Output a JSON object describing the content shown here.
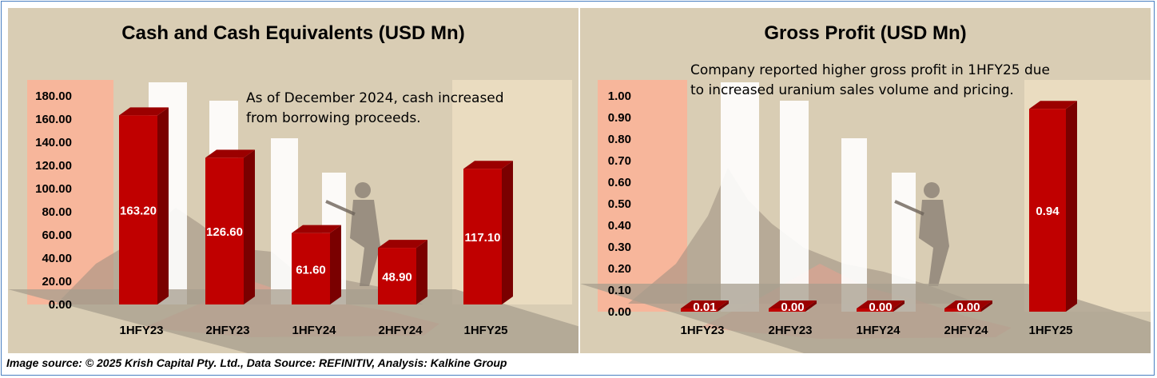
{
  "footer": {
    "source": "Image source: © 2025 Krish Capital Pty. Ltd., Data Source: REFINITIV, Analysis: Kalkine Group"
  },
  "colors": {
    "panel_bg": "#d9cdb4",
    "bar_front": "#c00000",
    "bar_side": "#7a0000",
    "bar_top": "#9b0000",
    "accent_left": "#f7b69b",
    "accent_right": "#eadcc0",
    "frame": "#4a7fc1"
  },
  "chart_data": [
    {
      "type": "bar",
      "title": "Cash and Cash Equivalents  (USD Mn)",
      "annotation": [
        "As of December 2024, cash increased",
        "from borrowing proceeds."
      ],
      "categories": [
        "1HFY23",
        "2HFY23",
        "1HFY24",
        "2HFY24",
        "1HFY25"
      ],
      "values": [
        163.2,
        126.6,
        61.6,
        48.9,
        117.1
      ],
      "data_labels": [
        "163.20",
        "126.60",
        "61.60",
        "48.90",
        "117.10"
      ],
      "y_ticks": [
        "0.00",
        "20.00",
        "40.00",
        "60.00",
        "80.00",
        "100.00",
        "120.00",
        "140.00",
        "160.00",
        "180.00"
      ],
      "ylim": [
        0,
        180
      ],
      "grid": false,
      "legend": "none"
    },
    {
      "type": "bar",
      "title": "Gross Profit  (USD Mn)",
      "annotation": [
        "Company reported higher gross profit in 1HFY25 due",
        "to increased uranium sales volume and pricing."
      ],
      "categories": [
        "1HFY23",
        "2HFY23",
        "1HFY24",
        "2HFY24",
        "1HFY25"
      ],
      "values": [
        0.01,
        0.0,
        0.0,
        0.0,
        0.94
      ],
      "data_labels": [
        "0.01",
        "0.00",
        "0.00",
        "0.00",
        "0.94"
      ],
      "y_ticks": [
        "0.00",
        "0.10",
        "0.20",
        "0.30",
        "0.40",
        "0.50",
        "0.60",
        "0.70",
        "0.80",
        "0.90",
        "1.00"
      ],
      "ylim": [
        0,
        1
      ],
      "grid": false,
      "legend": "none"
    }
  ]
}
